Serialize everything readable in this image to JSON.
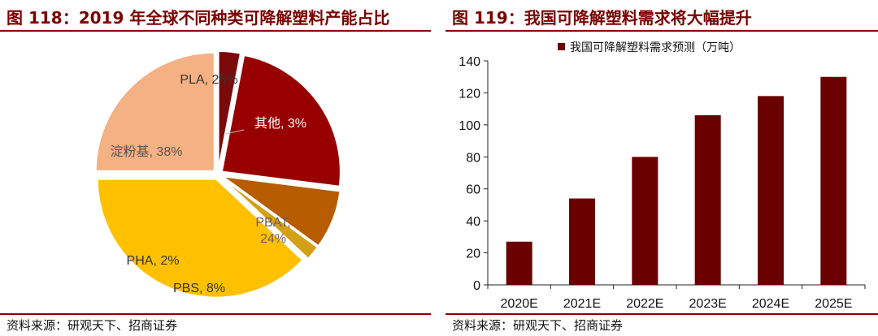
{
  "left": {
    "title": "图 118：2019 年全球不同种类可降解塑料产能占比",
    "source": "资料来源：研观天下、招商证券"
  },
  "right": {
    "title": "图 119：我国可降解塑料需求将大幅提升",
    "source": "资料来源：研观天下、招商证券"
  },
  "chart_data": [
    {
      "type": "pie",
      "slices": [
        {
          "label": "其他, 3%",
          "name": "其他",
          "value": 3,
          "color": "#7b0b0b"
        },
        {
          "label": "PBAT,\n24%",
          "name": "PBAT",
          "value": 24,
          "color": "#980000"
        },
        {
          "label": "PBS, 8%",
          "name": "PBS",
          "value": 8,
          "color": "#b85c00"
        },
        {
          "label": "PHA, 2%",
          "name": "PHA",
          "value": 2,
          "color": "#d4a017"
        },
        {
          "label": "淀粉基, 38%",
          "name": "淀粉基",
          "value": 38,
          "color": "#ffc000"
        },
        {
          "label": "PLA, 25%",
          "name": "PLA",
          "value": 25,
          "color": "#f4b183"
        }
      ]
    },
    {
      "type": "bar",
      "categories": [
        "2020E",
        "2021E",
        "2022E",
        "2023E",
        "2024E",
        "2025E"
      ],
      "series": [
        {
          "name": "我国可降解塑料需求预测（万吨）",
          "values": [
            27,
            54,
            80,
            106,
            118,
            130
          ],
          "color": "#6b0000"
        }
      ],
      "yticks": [
        0,
        20,
        40,
        60,
        80,
        100,
        120,
        140
      ],
      "ylim": [
        0,
        140
      ]
    }
  ]
}
